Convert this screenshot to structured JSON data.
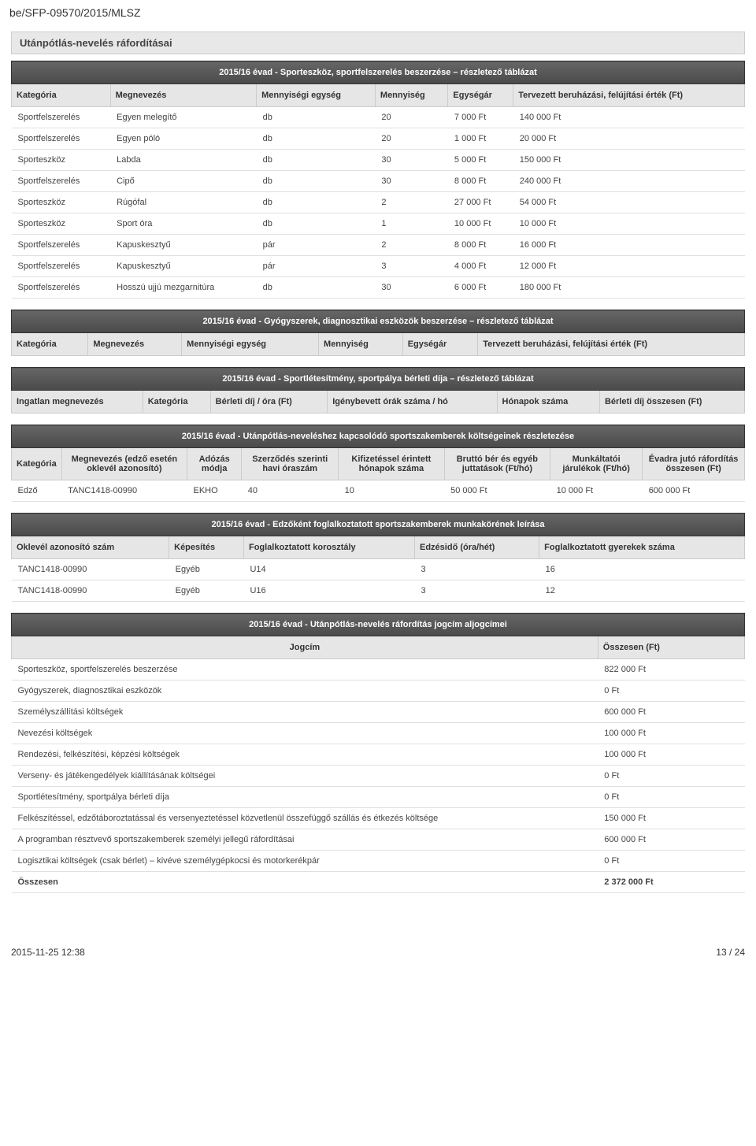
{
  "docId": "be/SFP-09570/2015/MLSZ",
  "sectionTitle": "Utánpótlás-nevelés ráfordításai",
  "footer": {
    "left": "2015-11-25 12:38",
    "right": "13 / 24"
  },
  "sporteszkoz": {
    "header": "2015/16 évad - Sporteszköz, sportfelszerelés beszerzése – részletező táblázat",
    "cols": [
      "Kategória",
      "Megnevezés",
      "Mennyiségi egység",
      "Mennyiség",
      "Egységár",
      "Tervezett beruházási, felújítási érték (Ft)"
    ],
    "rows": [
      [
        "Sportfelszerelés",
        "Egyen melegítő",
        "db",
        "20",
        "7 000 Ft",
        "140 000 Ft"
      ],
      [
        "Sportfelszerelés",
        "Egyen póló",
        "db",
        "20",
        "1 000 Ft",
        "20 000 Ft"
      ],
      [
        "Sporteszköz",
        "Labda",
        "db",
        "30",
        "5 000 Ft",
        "150 000 Ft"
      ],
      [
        "Sportfelszerelés",
        "Cipő",
        "db",
        "30",
        "8 000 Ft",
        "240 000 Ft"
      ],
      [
        "Sporteszköz",
        "Rúgófal",
        "db",
        "2",
        "27 000 Ft",
        "54 000 Ft"
      ],
      [
        "Sporteszköz",
        "Sport óra",
        "db",
        "1",
        "10 000 Ft",
        "10 000 Ft"
      ],
      [
        "Sportfelszerelés",
        "Kapuskesztyű",
        "pár",
        "2",
        "8 000 Ft",
        "16 000 Ft"
      ],
      [
        "Sportfelszerelés",
        "Kapuskesztyű",
        "pár",
        "3",
        "4 000 Ft",
        "12 000 Ft"
      ],
      [
        "Sportfelszerelés",
        "Hosszú ujjú mezgarnitúra",
        "db",
        "30",
        "6 000 Ft",
        "180 000 Ft"
      ]
    ]
  },
  "gyogyszerek": {
    "header": "2015/16 évad - Gyógyszerek, diagnosztikai eszközök beszerzése – részletező táblázat",
    "cols": [
      "Kategória",
      "Megnevezés",
      "Mennyiségi egység",
      "Mennyiség",
      "Egységár",
      "Tervezett beruházási, felújítási érték (Ft)"
    ]
  },
  "berlet": {
    "header": "2015/16 évad - Sportlétesítmény, sportpálya bérleti díja – részletező táblázat",
    "cols": [
      "Ingatlan megnevezés",
      "Kategória",
      "Bérleti díj / óra (Ft)",
      "Igénybevett órák száma / hó",
      "Hónapok száma",
      "Bérleti díj összesen (Ft)"
    ]
  },
  "szakemberek": {
    "header": "2015/16 évad - Utánpótlás-neveléshez kapcsolódó sportszakemberek költségeinek részletezése",
    "cols": [
      "Kategória",
      "Megnevezés (edző esetén oklevél azonosító)",
      "Adózás módja",
      "Szerződés szerinti havi óraszám",
      "Kifizetéssel érintett hónapok száma",
      "Bruttó bér és egyéb juttatások (Ft/hó)",
      "Munkáltatói járulékok (Ft/hó)",
      "Évadra jutó ráfordítás összesen (Ft)"
    ],
    "rows": [
      [
        "Edző",
        "TANC1418-00990",
        "EKHO",
        "40",
        "10",
        "50 000 Ft",
        "10 000 Ft",
        "600 000 Ft"
      ]
    ]
  },
  "edzok": {
    "header": "2015/16 évad - Edzőként foglalkoztatott sportszakemberek munkakörének leírása",
    "cols": [
      "Oklevél azonosító szám",
      "Képesítés",
      "Foglalkoztatott korosztály",
      "Edzésidő (óra/hét)",
      "Foglalkoztatott gyerekek száma"
    ],
    "rows": [
      [
        "TANC1418-00990",
        "Egyéb",
        "U14",
        "3",
        "16"
      ],
      [
        "TANC1418-00990",
        "Egyéb",
        "U16",
        "3",
        "12"
      ]
    ]
  },
  "jogcim": {
    "header": "2015/16 évad - Utánpótlás-nevelés ráfordítás jogcím aljogcímei",
    "cols": [
      "Jogcím",
      "Összesen (Ft)"
    ],
    "rows": [
      [
        "Sporteszköz, sportfelszerelés beszerzése",
        "822 000 Ft"
      ],
      [
        "Gyógyszerek, diagnosztikai eszközök",
        "0 Ft"
      ],
      [
        "Személyszállítási költségek",
        "600 000 Ft"
      ],
      [
        "Nevezési költségek",
        "100 000 Ft"
      ],
      [
        "Rendezési, felkészítési, képzési költségek",
        "100 000 Ft"
      ],
      [
        "Verseny- és játékengedélyek kiállításának költségei",
        "0 Ft"
      ],
      [
        "Sportlétesítmény, sportpálya bérleti díja",
        "0 Ft"
      ],
      [
        "Felkészítéssel, edzőtáboroztatással és versenyeztetéssel közvetlenül összefüggő szállás és étkezés költsége",
        "150 000 Ft"
      ],
      [
        "A programban résztvevő sportszakemberek személyi jellegű ráfordításai",
        "600 000 Ft"
      ],
      [
        "Logisztikai költségek (csak bérlet) – kivéve személygépkocsi és motorkerékpár",
        "0 Ft"
      ]
    ],
    "total": [
      "Összesen",
      "2 372 000 Ft"
    ]
  }
}
